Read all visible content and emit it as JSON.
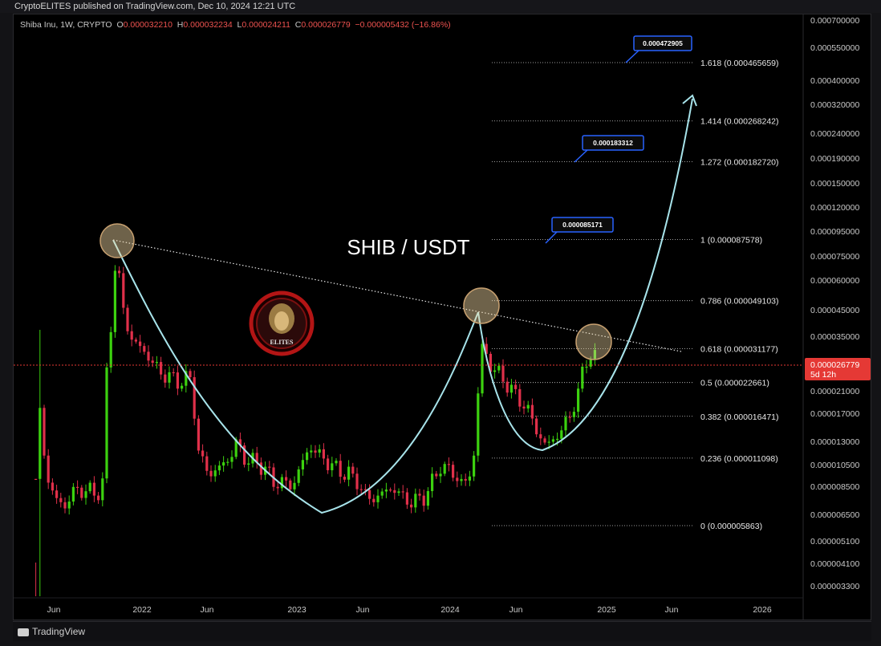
{
  "header": {
    "published": "CryptoELITES published on TradingView.com, Dec 10, 2024 12:21 UTC"
  },
  "legend": {
    "symbol": "Shiba Inu, 1W, CRYPTO",
    "o_label": "O",
    "o": "0.000032210",
    "h_label": "H",
    "h": "0.000032234",
    "l_label": "L",
    "l": "0.000024211",
    "c_label": "C",
    "c": "0.000026779",
    "change": "−0.000005432 (−16.86%)"
  },
  "footer": {
    "brand": "TradingView"
  },
  "logo": {
    "text": "ELITES"
  },
  "colors": {
    "up": "#3cd10f",
    "down": "#e0304a",
    "curve": "#a7e3ea",
    "callout": "#2962ff",
    "price_tag": "#e53935",
    "circle": "#f3d9a4"
  },
  "chart_data": {
    "type": "candlestick",
    "title": "SHIB / USDT",
    "y_scale": "log",
    "ylim": [
      2.9e-06,
      7.6e-06
    ],
    "y_ticks": [
      "0.000700000",
      "0.000550000",
      "0.000400000",
      "0.000320000",
      "0.000240000",
      "0.000190000",
      "0.000150000",
      "0.000120000",
      "0.000095000",
      "0.000075000",
      "0.000060000",
      "0.000045000",
      "0.000035000",
      "0.000021000",
      "0.000017000",
      "0.000013000",
      "0.000010500",
      "0.000008500",
      "0.000006500",
      "0.000005100",
      "0.000004100",
      "0.000003300"
    ],
    "x_ticks": [
      "Jun",
      "2022",
      "Jun",
      "2023",
      "Jun",
      "2024",
      "Jun",
      "2025",
      "Jun",
      "2026"
    ],
    "last_price": {
      "value": "0.000026779",
      "countdown": "5d 12h"
    },
    "fib_levels": [
      {
        "label": "1.618 (0.000465659)",
        "value": 0.000465659
      },
      {
        "label": "1.414 (0.000268242)",
        "value": 0.000268242
      },
      {
        "label": "1.272 (0.000182720)",
        "value": 0.00018272
      },
      {
        "label": "1 (0.000087578)",
        "value": 8.7578e-05
      },
      {
        "label": "0.786 (0.000049103)",
        "value": 4.9103e-05
      },
      {
        "label": "0.618 (0.000031177)",
        "value": 3.1177e-05
      },
      {
        "label": "0.5 (0.000022661)",
        "value": 2.2661e-05
      },
      {
        "label": "0.382 (0.000016471)",
        "value": 1.6471e-05
      },
      {
        "label": "0.236 (0.000011098)",
        "value": 1.1098e-05
      },
      {
        "label": "0 (0.000005863)",
        "value": 5.863e-06
      }
    ],
    "callouts": [
      {
        "text": "0.000472905",
        "value": 0.000472905
      },
      {
        "text": "0.000183312",
        "value": 0.000183312
      },
      {
        "text": "0.000085171",
        "value": 8.5171e-05
      }
    ]
  }
}
